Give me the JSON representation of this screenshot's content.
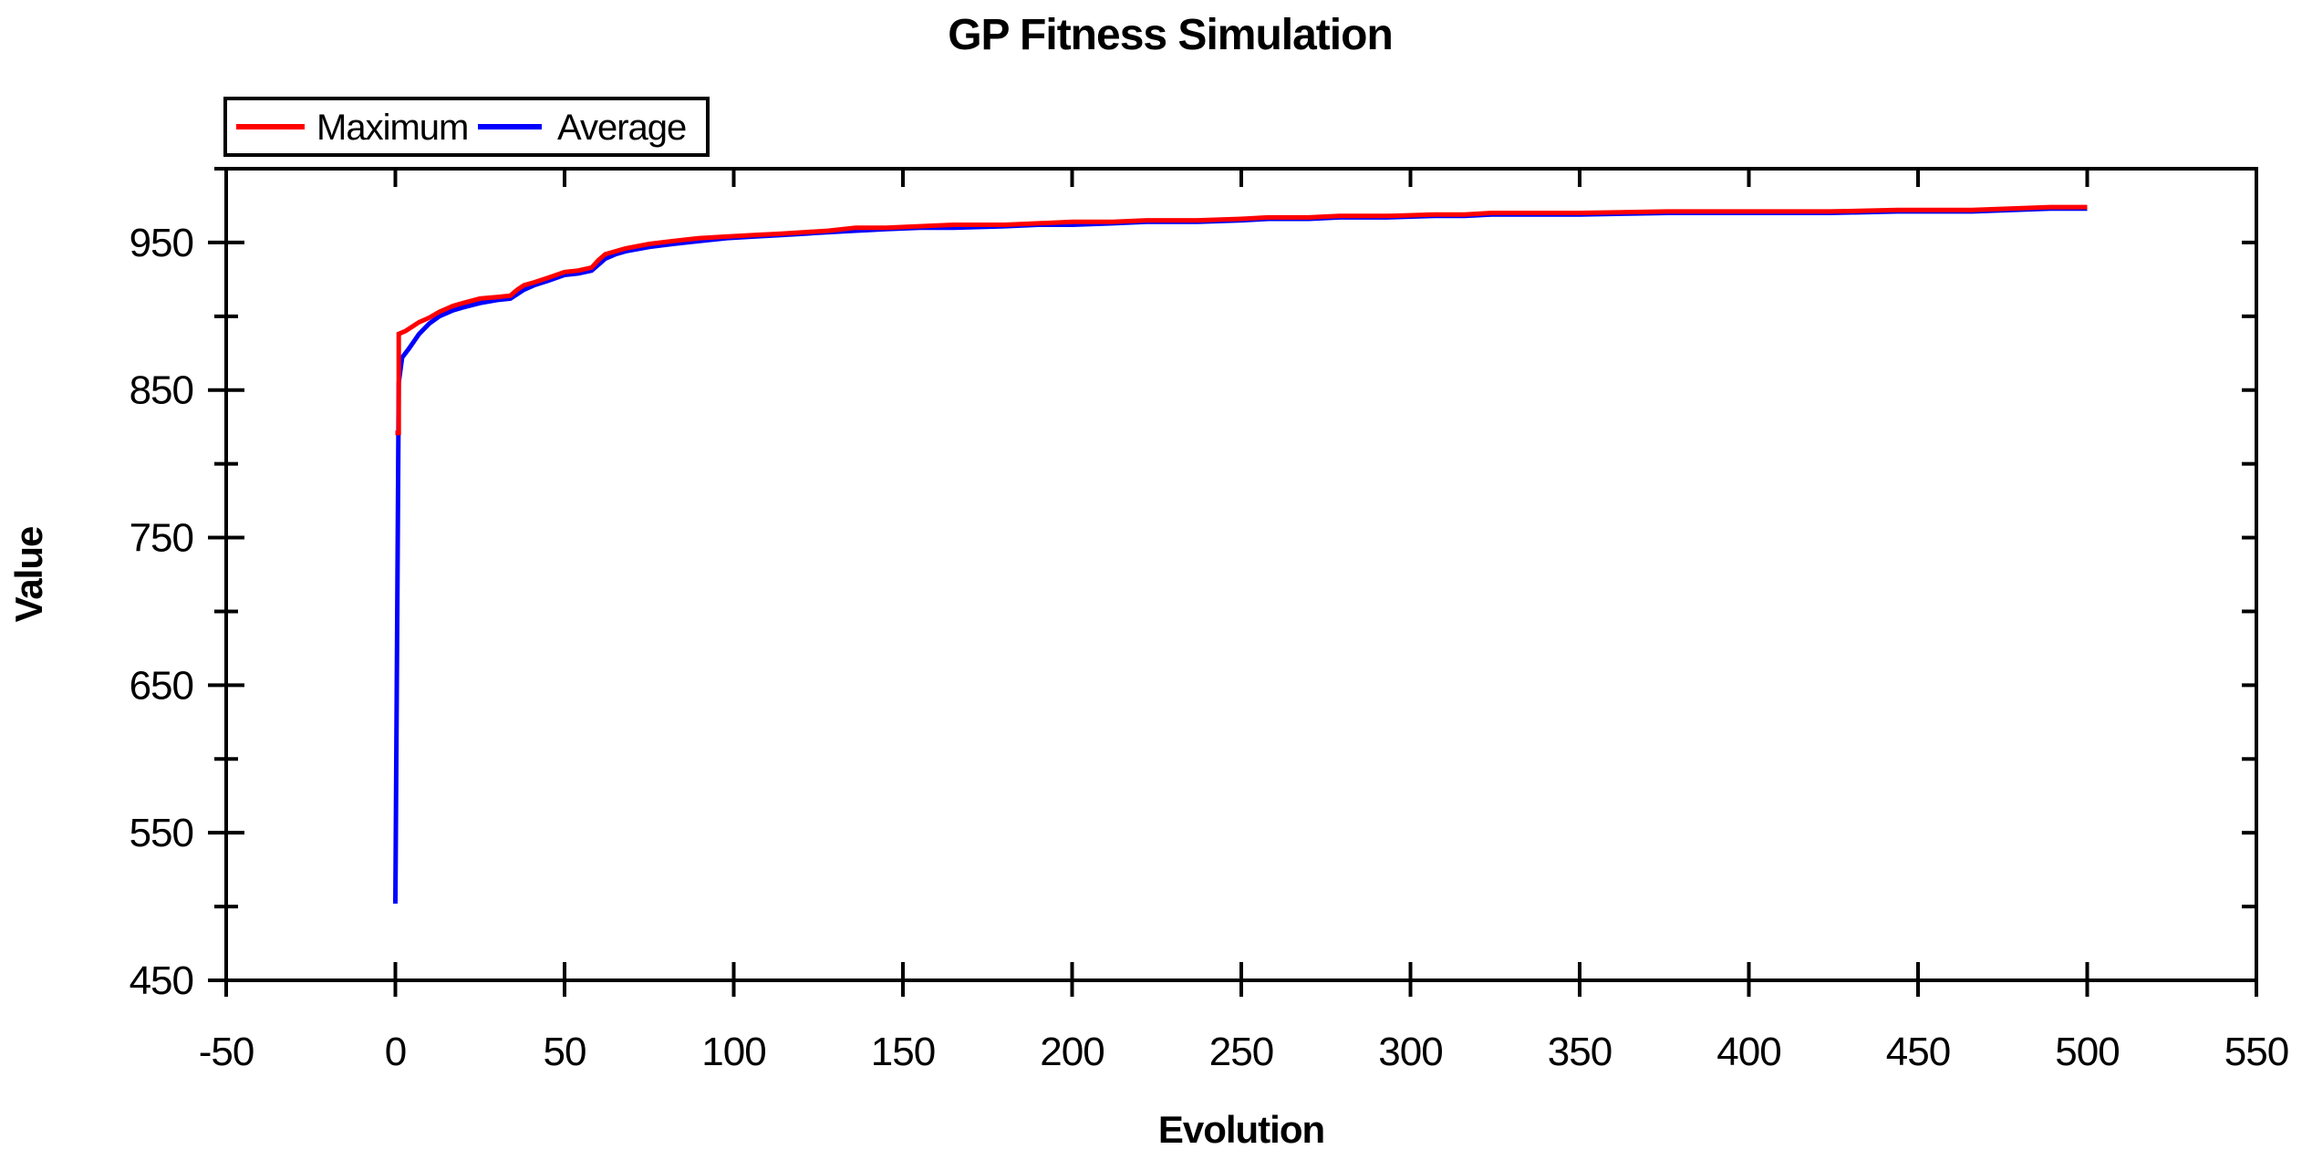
{
  "chart_data": {
    "type": "line",
    "title": "GP Fitness Simulation",
    "xlabel": "Evolution",
    "ylabel": "Value",
    "xlim": [
      -50,
      550
    ],
    "ylim": [
      450,
      1000
    ],
    "x_tick_step": 50,
    "y_tick_step": 50,
    "y_label_every": 100,
    "x_tick_labels": [
      "-50",
      "0",
      "50",
      "100",
      "150",
      "200",
      "250",
      "300",
      "350",
      "400",
      "450",
      "500",
      "550"
    ],
    "y_tick_labels": [
      "450",
      "550",
      "650",
      "750",
      "850",
      "950"
    ],
    "grid": false,
    "background_color": "#ffffff",
    "axis_color": "#000000",
    "legend": {
      "position": "top-left",
      "border": true,
      "entries": [
        {
          "label": "Maximum",
          "color": "#ff0000"
        },
        {
          "label": "Average",
          "color": "#0000ff"
        }
      ]
    },
    "series": [
      {
        "name": "Average",
        "color": "#0000ff",
        "points": [
          [
            0,
            502
          ],
          [
            1,
            855
          ],
          [
            2,
            872
          ],
          [
            4,
            878
          ],
          [
            7,
            888
          ],
          [
            10,
            895
          ],
          [
            13,
            900
          ],
          [
            17,
            904
          ],
          [
            20,
            906
          ],
          [
            25,
            909
          ],
          [
            30,
            911
          ],
          [
            34,
            912
          ],
          [
            36,
            915
          ],
          [
            38,
            918
          ],
          [
            41,
            921
          ],
          [
            45,
            924
          ],
          [
            50,
            928
          ],
          [
            54,
            929
          ],
          [
            58,
            931
          ],
          [
            60,
            935
          ],
          [
            62,
            939
          ],
          [
            65,
            942
          ],
          [
            68,
            944
          ],
          [
            75,
            947
          ],
          [
            82,
            949
          ],
          [
            90,
            951
          ],
          [
            98,
            953
          ],
          [
            106,
            954
          ],
          [
            114,
            955
          ],
          [
            121,
            956
          ],
          [
            128,
            957
          ],
          [
            136,
            958
          ],
          [
            145,
            959
          ],
          [
            155,
            960
          ],
          [
            165,
            960
          ],
          [
            180,
            961
          ],
          [
            190,
            962
          ],
          [
            200,
            962
          ],
          [
            212,
            963
          ],
          [
            222,
            964
          ],
          [
            237,
            964
          ],
          [
            250,
            965
          ],
          [
            258,
            966
          ],
          [
            270,
            966
          ],
          [
            279,
            967
          ],
          [
            293,
            967
          ],
          [
            307,
            968
          ],
          [
            316,
            968
          ],
          [
            324,
            969
          ],
          [
            350,
            969
          ],
          [
            376,
            970
          ],
          [
            400,
            970
          ],
          [
            424,
            970
          ],
          [
            444,
            971
          ],
          [
            466,
            971
          ],
          [
            489,
            973
          ],
          [
            500,
            973
          ]
        ]
      },
      {
        "name": "Maximum",
        "color": "#ff0000",
        "points": [
          [
            0,
            821
          ],
          [
            1,
            821
          ],
          [
            1,
            888
          ],
          [
            3,
            890
          ],
          [
            5,
            893
          ],
          [
            7,
            896
          ],
          [
            10,
            899
          ],
          [
            13,
            903
          ],
          [
            17,
            907
          ],
          [
            20,
            909
          ],
          [
            25,
            912
          ],
          [
            30,
            913
          ],
          [
            34,
            914
          ],
          [
            36,
            918
          ],
          [
            38,
            921
          ],
          [
            41,
            923
          ],
          [
            45,
            926
          ],
          [
            50,
            930
          ],
          [
            54,
            931
          ],
          [
            58,
            933
          ],
          [
            60,
            938
          ],
          [
            62,
            942
          ],
          [
            65,
            944
          ],
          [
            68,
            946
          ],
          [
            75,
            949
          ],
          [
            82,
            951
          ],
          [
            90,
            953
          ],
          [
            98,
            954
          ],
          [
            106,
            955
          ],
          [
            114,
            956
          ],
          [
            121,
            957
          ],
          [
            128,
            958
          ],
          [
            136,
            960
          ],
          [
            145,
            960
          ],
          [
            155,
            961
          ],
          [
            165,
            962
          ],
          [
            180,
            962
          ],
          [
            190,
            963
          ],
          [
            200,
            964
          ],
          [
            212,
            964
          ],
          [
            222,
            965
          ],
          [
            237,
            965
          ],
          [
            250,
            966
          ],
          [
            258,
            967
          ],
          [
            270,
            967
          ],
          [
            279,
            968
          ],
          [
            293,
            968
          ],
          [
            307,
            969
          ],
          [
            316,
            969
          ],
          [
            324,
            970
          ],
          [
            350,
            970
          ],
          [
            376,
            971
          ],
          [
            400,
            971
          ],
          [
            424,
            971
          ],
          [
            444,
            972
          ],
          [
            466,
            972
          ],
          [
            489,
            974
          ],
          [
            500,
            974
          ]
        ]
      }
    ]
  }
}
